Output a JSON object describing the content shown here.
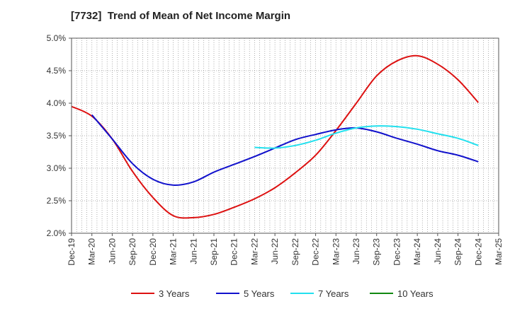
{
  "chart_data": {
    "type": "line",
    "title": "[7732]  Trend of Mean of Net Income Margin",
    "xlabel": "",
    "ylabel": "",
    "x_ticks": [
      "Dec-19",
      "Mar-20",
      "Jun-20",
      "Sep-20",
      "Dec-20",
      "Mar-21",
      "Jun-21",
      "Sep-21",
      "Dec-21",
      "Mar-22",
      "Jun-22",
      "Sep-22",
      "Dec-22",
      "Mar-23",
      "Jun-23",
      "Sep-23",
      "Dec-23",
      "Mar-24",
      "Jun-24",
      "Sep-24",
      "Dec-24",
      "Mar-25"
    ],
    "y_ticks": [
      "2.0%",
      "2.5%",
      "3.0%",
      "3.5%",
      "4.0%",
      "4.5%",
      "5.0%"
    ],
    "ylim": [
      2.0,
      5.0
    ],
    "grid": true,
    "legend_position": "bottom",
    "series": [
      {
        "name": "3 Years",
        "color": "#dd1111",
        "x": [
          "Dec-19",
          "Mar-20",
          "Jun-20",
          "Sep-20",
          "Dec-20",
          "Mar-21",
          "Jun-21",
          "Sep-21",
          "Dec-21",
          "Mar-22",
          "Jun-22",
          "Sep-22",
          "Dec-22",
          "Mar-23",
          "Jun-23",
          "Sep-23",
          "Dec-23",
          "Mar-24",
          "Jun-24",
          "Sep-24",
          "Dec-24"
        ],
        "values": [
          3.95,
          3.8,
          3.45,
          2.95,
          2.55,
          2.27,
          2.24,
          2.29,
          2.4,
          2.53,
          2.7,
          2.93,
          3.2,
          3.58,
          4.0,
          4.42,
          4.65,
          4.73,
          4.6,
          4.36,
          4.01
        ]
      },
      {
        "name": "5 Years",
        "color": "#1111cc",
        "x": [
          "Mar-20",
          "Jun-20",
          "Sep-20",
          "Dec-20",
          "Mar-21",
          "Jun-21",
          "Sep-21",
          "Dec-21",
          "Mar-22",
          "Jun-22",
          "Sep-22",
          "Dec-22",
          "Mar-23",
          "Jun-23",
          "Sep-23",
          "Dec-23",
          "Mar-24",
          "Jun-24",
          "Sep-24",
          "Dec-24"
        ],
        "values": [
          3.82,
          3.45,
          3.07,
          2.83,
          2.74,
          2.79,
          2.94,
          3.06,
          3.18,
          3.31,
          3.44,
          3.52,
          3.59,
          3.62,
          3.56,
          3.46,
          3.37,
          3.27,
          3.2,
          3.1
        ]
      },
      {
        "name": "7 Years",
        "color": "#22e0ee",
        "x": [
          "Mar-22",
          "Jun-22",
          "Sep-22",
          "Dec-22",
          "Mar-23",
          "Jun-23",
          "Sep-23",
          "Dec-23",
          "Mar-24",
          "Jun-24",
          "Sep-24",
          "Dec-24"
        ],
        "values": [
          3.32,
          3.31,
          3.35,
          3.43,
          3.54,
          3.62,
          3.65,
          3.64,
          3.6,
          3.53,
          3.46,
          3.35
        ]
      },
      {
        "name": "10 Years",
        "color": "#118811",
        "x": [],
        "values": []
      }
    ]
  }
}
